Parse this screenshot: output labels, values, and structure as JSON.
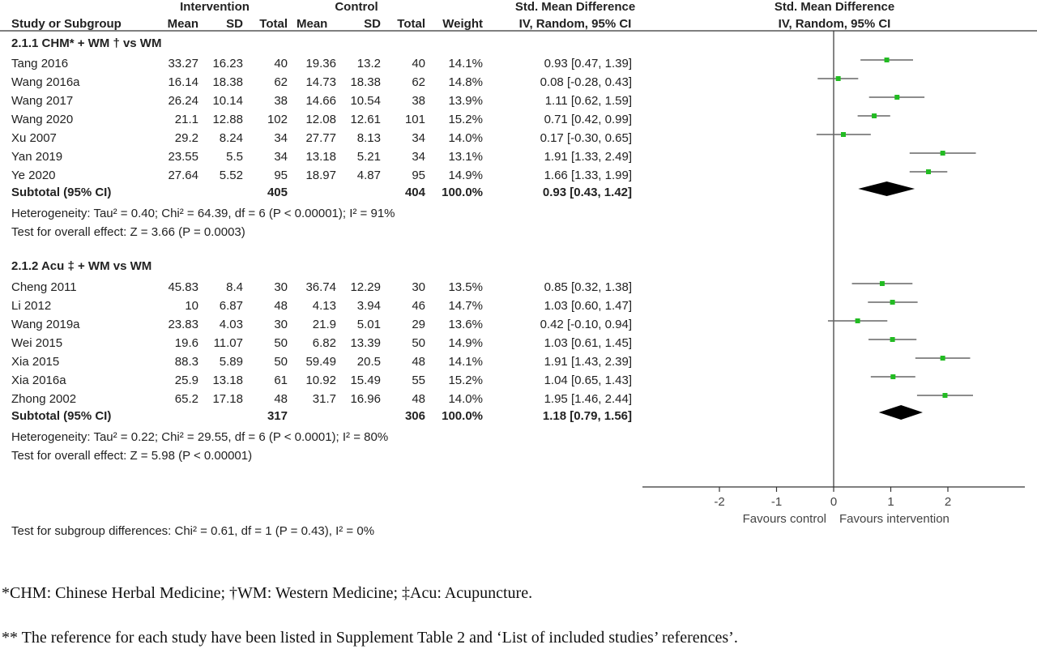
{
  "header": {
    "group_intervention": "Intervention",
    "group_control": "Control",
    "smd_title_left": "Std. Mean Difference",
    "smd_title_right": "Std. Mean Difference",
    "col_study": "Study or Subgroup",
    "col_mean_i": "Mean",
    "col_sd_i": "SD",
    "col_total_i": "Total",
    "col_mean_c": "Mean",
    "col_sd_c": "SD",
    "col_total_c": "Total",
    "col_weight": "Weight",
    "col_method_left": "IV, Random, 95% CI",
    "col_method_right": "IV, Random, 95% CI"
  },
  "subgroups": [
    {
      "title": "2.1.1 CHM* + WM † vs WM",
      "studies": [
        {
          "name": "Tang 2016",
          "mean_i": "33.27",
          "sd_i": "16.23",
          "total_i": "40",
          "mean_c": "19.36",
          "sd_c": "13.2",
          "total_c": "40",
          "weight": "14.1%",
          "ci_text": "0.93 [0.47, 1.39]"
        },
        {
          "name": "Wang 2016a",
          "mean_i": "16.14",
          "sd_i": "18.38",
          "total_i": "62",
          "mean_c": "14.73",
          "sd_c": "18.38",
          "total_c": "62",
          "weight": "14.8%",
          "ci_text": "0.08 [-0.28, 0.43]"
        },
        {
          "name": "Wang 2017",
          "mean_i": "26.24",
          "sd_i": "10.14",
          "total_i": "38",
          "mean_c": "14.66",
          "sd_c": "10.54",
          "total_c": "38",
          "weight": "13.9%",
          "ci_text": "1.11 [0.62, 1.59]"
        },
        {
          "name": "Wang 2020",
          "mean_i": "21.1",
          "sd_i": "12.88",
          "total_i": "102",
          "mean_c": "12.08",
          "sd_c": "12.61",
          "total_c": "101",
          "weight": "15.2%",
          "ci_text": "0.71 [0.42, 0.99]"
        },
        {
          "name": "Xu 2007",
          "mean_i": "29.2",
          "sd_i": "8.24",
          "total_i": "34",
          "mean_c": "27.77",
          "sd_c": "8.13",
          "total_c": "34",
          "weight": "14.0%",
          "ci_text": "0.17 [-0.30, 0.65]"
        },
        {
          "name": "Yan 2019",
          "mean_i": "23.55",
          "sd_i": "5.5",
          "total_i": "34",
          "mean_c": "13.18",
          "sd_c": "5.21",
          "total_c": "34",
          "weight": "13.1%",
          "ci_text": "1.91 [1.33, 2.49]"
        },
        {
          "name": "Ye 2020",
          "mean_i": "27.64",
          "sd_i": "5.52",
          "total_i": "95",
          "mean_c": "18.97",
          "sd_c": "4.87",
          "total_c": "95",
          "weight": "14.9%",
          "ci_text": "1.66 [1.33, 1.99]"
        }
      ],
      "subtotal": {
        "label": "Subtotal (95% CI)",
        "total_i": "405",
        "total_c": "404",
        "weight": "100.0%",
        "ci_text": "0.93 [0.43, 1.42]"
      },
      "heterogeneity": "Heterogeneity: Tau² = 0.40; Chi² = 64.39, df = 6 (P < 0.00001); I² = 91%",
      "overall": "Test for overall effect: Z = 3.66 (P = 0.0003)"
    },
    {
      "title": "2.1.2 Acu ‡ + WM vs WM",
      "studies": [
        {
          "name": "Cheng 2011",
          "mean_i": "45.83",
          "sd_i": "8.4",
          "total_i": "30",
          "mean_c": "36.74",
          "sd_c": "12.29",
          "total_c": "30",
          "weight": "13.5%",
          "ci_text": "0.85 [0.32, 1.38]"
        },
        {
          "name": "Li 2012",
          "mean_i": "10",
          "sd_i": "6.87",
          "total_i": "48",
          "mean_c": "4.13",
          "sd_c": "3.94",
          "total_c": "46",
          "weight": "14.7%",
          "ci_text": "1.03 [0.60, 1.47]"
        },
        {
          "name": "Wang 2019a",
          "mean_i": "23.83",
          "sd_i": "4.03",
          "total_i": "30",
          "mean_c": "21.9",
          "sd_c": "5.01",
          "total_c": "29",
          "weight": "13.6%",
          "ci_text": "0.42 [-0.10, 0.94]"
        },
        {
          "name": "Wei 2015",
          "mean_i": "19.6",
          "sd_i": "11.07",
          "total_i": "50",
          "mean_c": "6.82",
          "sd_c": "13.39",
          "total_c": "50",
          "weight": "14.9%",
          "ci_text": "1.03 [0.61, 1.45]"
        },
        {
          "name": "Xia 2015",
          "mean_i": "88.3",
          "sd_i": "5.89",
          "total_i": "50",
          "mean_c": "59.49",
          "sd_c": "20.5",
          "total_c": "48",
          "weight": "14.1%",
          "ci_text": "1.91 [1.43, 2.39]"
        },
        {
          "name": "Xia 2016a",
          "mean_i": "25.9",
          "sd_i": "13.18",
          "total_i": "61",
          "mean_c": "10.92",
          "sd_c": "15.49",
          "total_c": "55",
          "weight": "15.2%",
          "ci_text": "1.04 [0.65, 1.43]"
        },
        {
          "name": "Zhong 2002",
          "mean_i": "65.2",
          "sd_i": "17.18",
          "total_i": "48",
          "mean_c": "31.7",
          "sd_c": "16.96",
          "total_c": "48",
          "weight": "14.0%",
          "ci_text": "1.95 [1.46, 2.44]"
        }
      ],
      "subtotal": {
        "label": "Subtotal (95% CI)",
        "total_i": "317",
        "total_c": "306",
        "weight": "100.0%",
        "ci_text": "1.18 [0.79, 1.56]"
      },
      "heterogeneity": "Heterogeneity: Tau² = 0.22; Chi² = 29.55, df = 6 (P < 0.0001); I² = 80%",
      "overall": "Test for overall effect: Z = 5.98 (P < 0.00001)"
    }
  ],
  "subgroup_test": "Test for subgroup differences: Chi² = 0.61, df = 1 (P = 0.43), I² = 0%",
  "axis": {
    "tick_labels": [
      "-2",
      "-1",
      "0",
      "1",
      "2"
    ],
    "favours_left": "Favours control",
    "favours_right": "Favours intervention"
  },
  "footnotes": [
    "*CHM: Chinese Herbal Medicine; †WM: Western Medicine; ‡Acu: Acupuncture.",
    "** The reference for each study have been listed in Supplement Table 2 and ‘List of included studies’ references’."
  ],
  "colors": {
    "point": "#22bb22",
    "diamond": "#000000",
    "ci_line": "#666666",
    "axis": "#333333"
  },
  "chart_data": {
    "type": "scatter",
    "xlim": [
      -3,
      3.5
    ],
    "tick_values": [
      -2,
      -1,
      0,
      1,
      2
    ],
    "studies": [
      {
        "name": "Tang 2016",
        "est": 0.93,
        "lo": 0.47,
        "hi": 1.39
      },
      {
        "name": "Wang 2016a",
        "est": 0.08,
        "lo": -0.28,
        "hi": 0.43
      },
      {
        "name": "Wang 2017",
        "est": 1.11,
        "lo": 0.62,
        "hi": 1.59
      },
      {
        "name": "Wang 2020",
        "est": 0.71,
        "lo": 0.42,
        "hi": 0.99
      },
      {
        "name": "Xu 2007",
        "est": 0.17,
        "lo": -0.3,
        "hi": 0.65
      },
      {
        "name": "Yan 2019",
        "est": 1.91,
        "lo": 1.33,
        "hi": 2.49
      },
      {
        "name": "Ye 2020",
        "est": 1.66,
        "lo": 1.33,
        "hi": 1.99
      },
      {
        "name": "Subtotal (95% CI)",
        "est": 0.93,
        "lo": 0.43,
        "hi": 1.42,
        "summary": true
      },
      {
        "name": "Cheng 2011",
        "est": 0.85,
        "lo": 0.32,
        "hi": 1.38
      },
      {
        "name": "Li 2012",
        "est": 1.03,
        "lo": 0.6,
        "hi": 1.47
      },
      {
        "name": "Wang 2019a",
        "est": 0.42,
        "lo": -0.1,
        "hi": 0.94
      },
      {
        "name": "Wei 2015",
        "est": 1.03,
        "lo": 0.61,
        "hi": 1.45
      },
      {
        "name": "Xia 2015",
        "est": 1.91,
        "lo": 1.43,
        "hi": 2.39
      },
      {
        "name": "Xia 2016a",
        "est": 1.04,
        "lo": 0.65,
        "hi": 1.43
      },
      {
        "name": "Zhong 2002",
        "est": 1.95,
        "lo": 1.46,
        "hi": 2.44
      },
      {
        "name": "Subtotal (95% CI)",
        "est": 1.18,
        "lo": 0.79,
        "hi": 1.56,
        "summary": true
      }
    ]
  }
}
